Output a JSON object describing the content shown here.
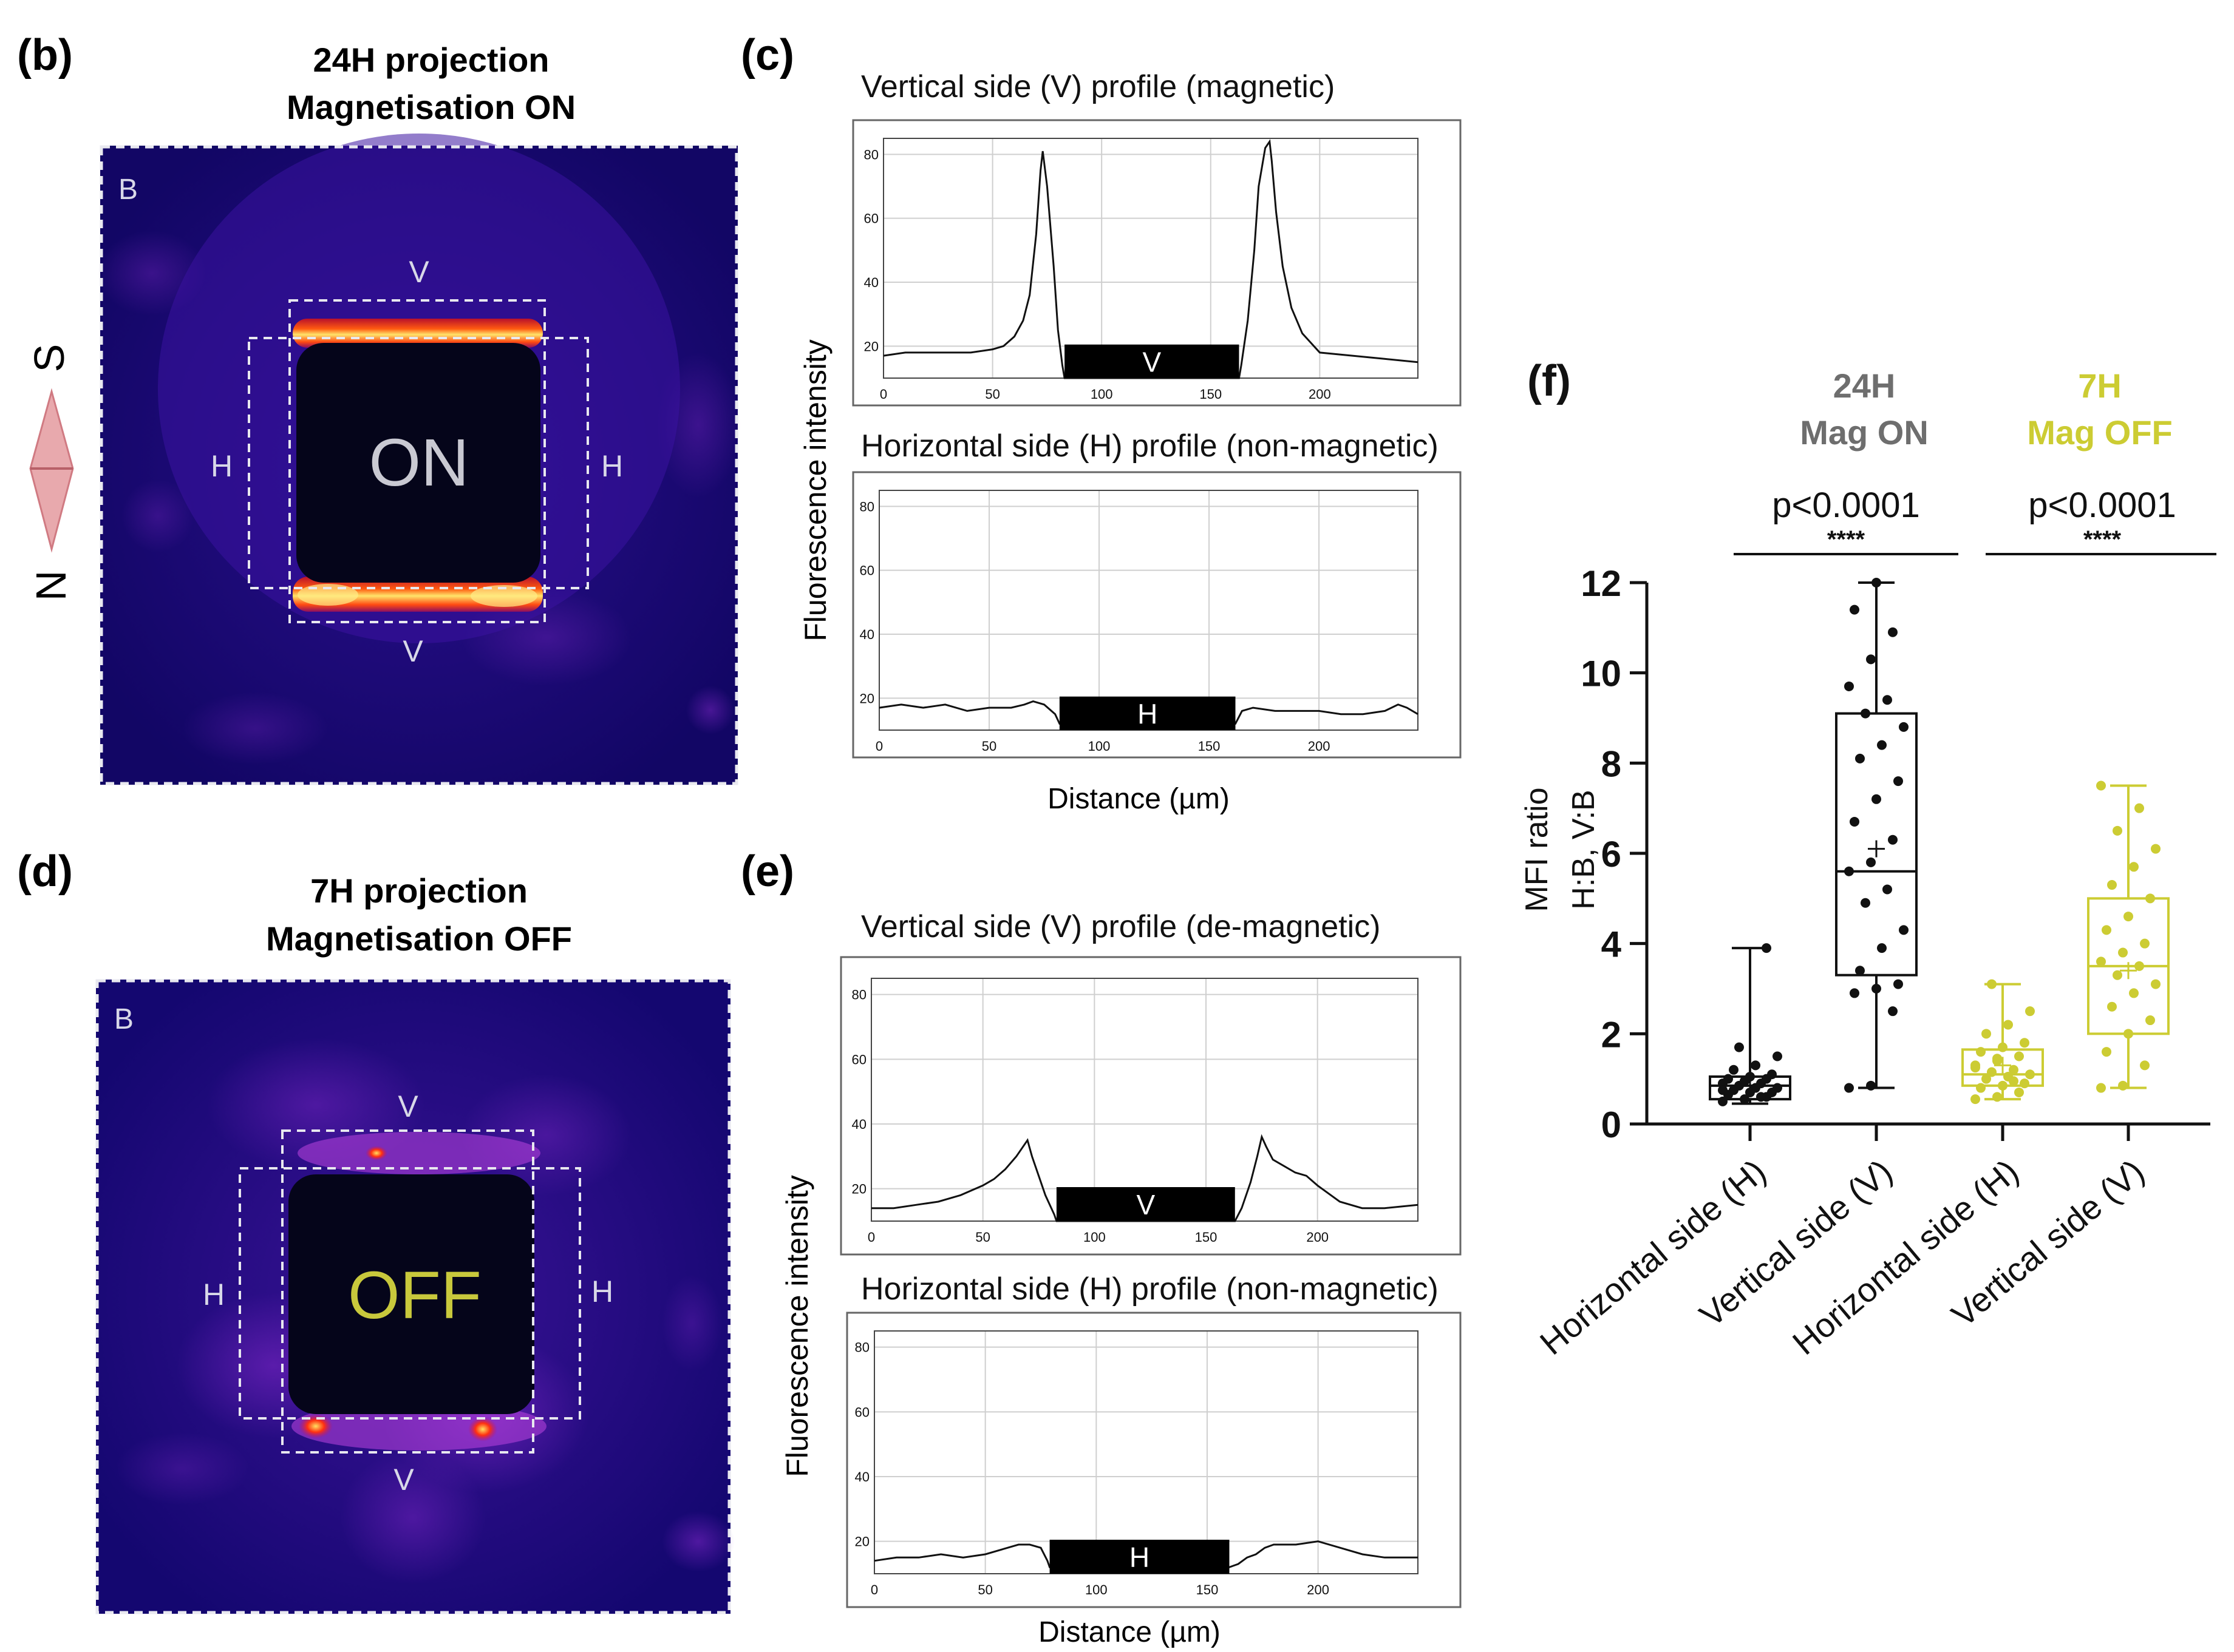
{
  "colors": {
    "grey_label": "#6e6e6e",
    "yellow": "#cccc33",
    "on_text": "#c9c9d2",
    "off_text": "#c8c83c",
    "compass": "#e8a9ad"
  },
  "panel_b": {
    "letter": "(b)",
    "title_line1": "24H projection",
    "title_line2": "Magnetisation ON",
    "corner_label": "B",
    "center_label": "ON",
    "v_label": "V",
    "h_label": "H",
    "compass_s": "S",
    "compass_n": "N"
  },
  "panel_d": {
    "letter": "(d)",
    "title_line1": "7H projection",
    "title_line2": "Magnetisation OFF",
    "corner_label": "B",
    "center_label": "OFF",
    "v_label": "V",
    "h_label": "H"
  },
  "panel_c": {
    "letter": "(c)",
    "ylabel": "Fluorescence intensity",
    "xlabel": "Distance (µm)"
  },
  "panel_e": {
    "letter": "(e)",
    "ylabel": "Fluorescence intensity",
    "xlabel": "Distance (µm)"
  },
  "chart_data": [
    {
      "id": "c_top",
      "type": "line",
      "title": "Vertical side (V) profile (magnetic)",
      "xlim": [
        0,
        245
      ],
      "ylim": [
        10,
        85
      ],
      "xticks": [
        0,
        50,
        100,
        150,
        200
      ],
      "yticks": [
        20,
        40,
        60,
        80
      ],
      "bar_label": "V",
      "bar_range": [
        83,
        163
      ],
      "x": [
        0,
        10,
        25,
        40,
        50,
        55,
        60,
        64,
        67,
        70,
        72,
        73,
        75,
        78,
        80,
        82,
        83,
        163,
        164,
        167,
        170,
        172,
        175,
        177,
        178,
        180,
        183,
        187,
        192,
        200,
        215,
        230,
        245
      ],
      "y": [
        17,
        18,
        18,
        18,
        19,
        20,
        23,
        28,
        36,
        55,
        75,
        81,
        70,
        45,
        25,
        14,
        10,
        10,
        14,
        28,
        50,
        70,
        82,
        84,
        78,
        62,
        45,
        32,
        24,
        18,
        17,
        16,
        15
      ]
    },
    {
      "id": "c_bottom",
      "type": "line",
      "title": "Horizontal side (H) profile (non-magnetic)",
      "xlim": [
        0,
        245
      ],
      "ylim": [
        10,
        85
      ],
      "xticks": [
        0,
        50,
        100,
        150,
        200
      ],
      "yticks": [
        20,
        40,
        60,
        80
      ],
      "bar_label": "H",
      "bar_range": [
        82,
        162
      ],
      "x": [
        0,
        10,
        20,
        30,
        40,
        50,
        60,
        66,
        70,
        75,
        80,
        82,
        162,
        165,
        170,
        180,
        190,
        200,
        210,
        220,
        230,
        236,
        240,
        245
      ],
      "y": [
        17,
        18,
        17,
        18,
        16,
        17,
        17,
        18,
        19,
        18,
        15,
        12,
        12,
        16,
        17,
        16,
        16,
        16,
        15,
        15,
        16,
        18,
        17,
        15
      ]
    },
    {
      "id": "e_top",
      "type": "line",
      "title": "Vertical side (V) profile (de-magnetic)",
      "xlim": [
        0,
        245
      ],
      "ylim": [
        10,
        85
      ],
      "xticks": [
        0,
        50,
        100,
        150,
        200
      ],
      "yticks": [
        20,
        40,
        60,
        80
      ],
      "bar_label": "V",
      "bar_range": [
        83,
        163
      ],
      "x": [
        0,
        10,
        20,
        30,
        40,
        50,
        55,
        60,
        65,
        68,
        70,
        72,
        75,
        78,
        82,
        83,
        163,
        166,
        170,
        173,
        175,
        177,
        180,
        185,
        190,
        195,
        200,
        210,
        220,
        230,
        245
      ],
      "y": [
        14,
        14,
        15,
        16,
        18,
        21,
        23,
        26,
        30,
        33,
        35,
        30,
        24,
        18,
        12,
        10,
        10,
        14,
        22,
        30,
        36,
        33,
        29,
        27,
        25,
        24,
        21,
        16,
        14,
        14,
        15
      ]
    },
    {
      "id": "e_bottom",
      "type": "line",
      "title": "Horizontal side (H) profile (non-magnetic)",
      "xlim": [
        0,
        245
      ],
      "ylim": [
        10,
        85
      ],
      "xticks": [
        0,
        50,
        100,
        150,
        200
      ],
      "yticks": [
        20,
        40,
        60,
        80
      ],
      "bar_label": "H",
      "bar_range": [
        79,
        160
      ],
      "x": [
        0,
        10,
        20,
        30,
        40,
        50,
        60,
        65,
        70,
        75,
        78,
        79,
        160,
        164,
        168,
        172,
        176,
        180,
        190,
        200,
        210,
        220,
        230,
        245
      ],
      "y": [
        14,
        15,
        15,
        16,
        15,
        16,
        18,
        19,
        19,
        18,
        14,
        12,
        12,
        13,
        15,
        16,
        18,
        19,
        19,
        20,
        18,
        16,
        15,
        15
      ]
    },
    {
      "id": "f",
      "type": "box",
      "letter": "(f)",
      "ylabel_line1": "MFI ratio",
      "ylabel_line2": "H:B, V:B",
      "ylim": [
        0,
        12
      ],
      "yticks": [
        0,
        2,
        4,
        6,
        8,
        10,
        12
      ],
      "group_labels": [
        {
          "line1": "24H",
          "line2": "Mag ON"
        },
        {
          "line1": "7H",
          "line2": "Mag OFF"
        }
      ],
      "comparisons": [
        {
          "p": "p<0.0001",
          "stars": "****"
        },
        {
          "p": "p<0.0001",
          "stars": "****"
        }
      ],
      "categories": [
        "Horizontal side (H)",
        "Vertical side (V)",
        "Horizontal side (H)",
        "Vertical side (V)"
      ],
      "series": [
        {
          "name": "Horizontal side (H)",
          "group": "24H Mag ON",
          "min": 0.45,
          "q1": 0.55,
          "median": 0.85,
          "q3": 1.05,
          "max": 3.9,
          "mean": 0.85,
          "points": [
            0.5,
            0.55,
            0.6,
            0.65,
            0.7,
            0.7,
            0.75,
            0.8,
            0.8,
            0.85,
            0.9,
            0.9,
            0.95,
            1.0,
            1.0,
            1.05,
            1.1,
            1.2,
            1.3,
            1.5,
            1.7,
            0.6,
            0.75,
            0.95,
            3.9
          ]
        },
        {
          "name": "Vertical side (V)",
          "group": "24H Mag ON",
          "min": 0.8,
          "q1": 3.3,
          "median": 5.6,
          "q3": 9.1,
          "max": 12.0,
          "mean": 6.1,
          "points": [
            0.8,
            0.85,
            2.5,
            2.9,
            3.0,
            3.1,
            3.4,
            3.9,
            4.3,
            4.9,
            5.2,
            5.6,
            5.8,
            6.3,
            6.7,
            7.2,
            7.6,
            8.1,
            8.4,
            8.8,
            9.1,
            9.4,
            9.7,
            10.3,
            10.9,
            11.4,
            12.0
          ]
        },
        {
          "name": "Horizontal side (H)",
          "group": "7H Mag OFF",
          "min": 0.55,
          "q1": 0.85,
          "median": 1.1,
          "q3": 1.65,
          "max": 3.1,
          "mean": 1.3,
          "points": [
            0.55,
            0.6,
            0.7,
            0.8,
            0.85,
            0.9,
            1.0,
            1.05,
            1.1,
            1.15,
            1.2,
            1.3,
            1.4,
            1.5,
            1.6,
            1.7,
            1.8,
            2.0,
            2.2,
            2.5,
            3.1,
            0.95,
            1.25,
            1.45
          ]
        },
        {
          "name": "Vertical side (V)",
          "group": "7H Mag OFF",
          "min": 0.8,
          "q1": 2.0,
          "median": 3.5,
          "q3": 5.0,
          "max": 7.5,
          "mean": 3.4,
          "points": [
            0.8,
            0.85,
            1.3,
            1.6,
            2.0,
            2.3,
            2.6,
            2.9,
            3.1,
            3.3,
            3.5,
            3.6,
            3.8,
            4.0,
            4.3,
            4.6,
            5.0,
            5.3,
            5.7,
            6.1,
            6.5,
            7.0,
            7.5
          ]
        }
      ]
    }
  ]
}
